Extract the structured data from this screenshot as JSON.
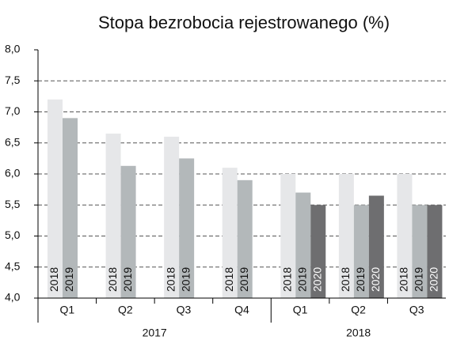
{
  "chart_data": {
    "type": "bar",
    "title": "Stopa bezrobocia rejestrowanego (%)",
    "groups": [
      {
        "label": "2017",
        "categories": [
          "Q1",
          "Q2",
          "Q3",
          "Q4"
        ]
      },
      {
        "label": "2018",
        "categories": [
          "Q1",
          "Q2",
          "Q3"
        ]
      }
    ],
    "series": [
      {
        "name": "2018",
        "color": "#e6e7e9",
        "values": [
          7.2,
          6.65,
          6.6,
          6.1,
          6.0,
          6.0,
          6.0
        ]
      },
      {
        "name": "2019",
        "color": "#b3b8ba",
        "values": [
          6.9,
          6.13,
          6.25,
          5.9,
          5.7,
          5.5,
          5.5
        ]
      },
      {
        "name": "2020",
        "color": "#6e6e70",
        "values": [
          null,
          null,
          null,
          null,
          5.5,
          5.65,
          5.5
        ]
      }
    ],
    "ylim": [
      4.0,
      8.0
    ],
    "yticks": [
      {
        "value": 4.0,
        "label": "4,0"
      },
      {
        "value": 4.5,
        "label": "4,5"
      },
      {
        "value": 5.0,
        "label": "5,0"
      },
      {
        "value": 5.5,
        "label": "5,5"
      },
      {
        "value": 6.0,
        "label": "6,0"
      },
      {
        "value": 6.5,
        "label": "6,5"
      },
      {
        "value": 7.0,
        "label": "7,0"
      },
      {
        "value": 7.5,
        "label": "7,5"
      },
      {
        "value": 8.0,
        "label": "8,0"
      }
    ],
    "grid": true
  }
}
